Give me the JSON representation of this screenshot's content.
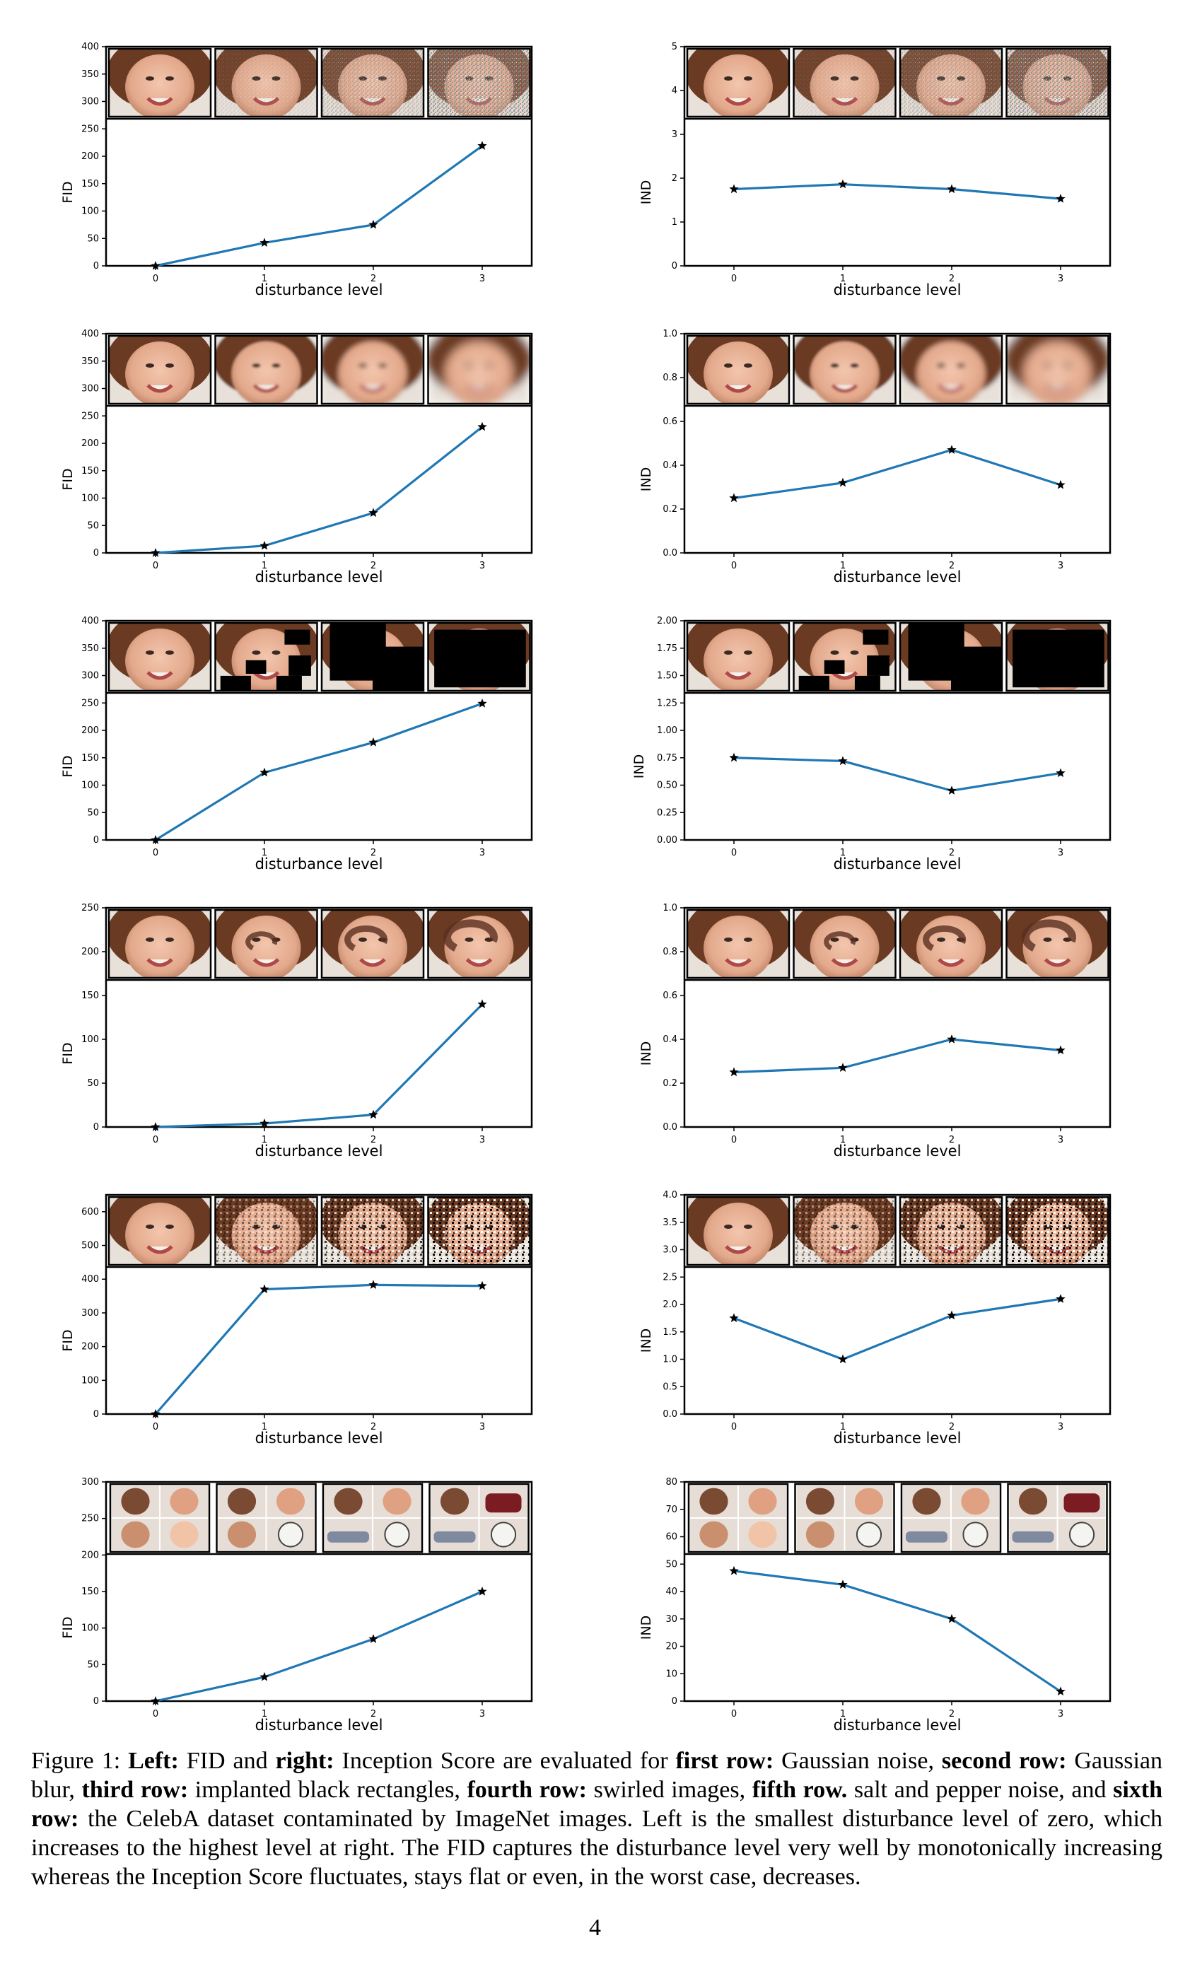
{
  "chart_data": [
    {
      "type": "line",
      "row": 1,
      "side": "left",
      "ylabel": "FID",
      "xlabel": "disturbance level",
      "ylim": [
        0,
        400
      ],
      "yticks": [
        "0",
        "50",
        "100",
        "150",
        "200",
        "250",
        "300",
        "350",
        "400"
      ],
      "x": [
        0,
        1,
        2,
        3
      ],
      "values": [
        0,
        42,
        75,
        219
      ],
      "thumbs": "face",
      "effect": "noise",
      "color": "#1f77b4"
    },
    {
      "type": "line",
      "row": 1,
      "side": "right",
      "ylabel": "IND",
      "xlabel": "disturbance level",
      "ylim": [
        0,
        5
      ],
      "yticks": [
        "0",
        "1",
        "2",
        "3",
        "4",
        "5"
      ],
      "x": [
        0,
        1,
        2,
        3
      ],
      "values": [
        1.75,
        1.86,
        1.75,
        1.53
      ],
      "thumbs": "face",
      "effect": "noise",
      "color": "#1f77b4"
    },
    {
      "type": "line",
      "row": 2,
      "side": "left",
      "ylabel": "FID",
      "xlabel": "disturbance level",
      "ylim": [
        0,
        400
      ],
      "yticks": [
        "0",
        "50",
        "100",
        "150",
        "200",
        "250",
        "300",
        "350",
        "400"
      ],
      "x": [
        0,
        1,
        2,
        3
      ],
      "values": [
        0,
        13,
        73,
        230
      ],
      "thumbs": "face",
      "effect": "blur",
      "color": "#1f77b4"
    },
    {
      "type": "line",
      "row": 2,
      "side": "right",
      "ylabel": "IND",
      "xlabel": "disturbance level",
      "ylim": [
        0,
        1.0
      ],
      "yticks": [
        "0.0",
        "0.2",
        "0.4",
        "0.6",
        "0.8",
        "1.0"
      ],
      "x": [
        0,
        1,
        2,
        3
      ],
      "values": [
        0.25,
        0.32,
        0.47,
        0.31
      ],
      "thumbs": "face",
      "effect": "blur",
      "color": "#1f77b4"
    },
    {
      "type": "line",
      "row": 3,
      "side": "left",
      "ylabel": "FID",
      "xlabel": "disturbance level",
      "ylim": [
        0,
        400
      ],
      "yticks": [
        "0",
        "50",
        "100",
        "150",
        "200",
        "250",
        "300",
        "350",
        "400"
      ],
      "x": [
        0,
        1,
        2,
        3
      ],
      "values": [
        0,
        123,
        178,
        249
      ],
      "thumbs": "face",
      "effect": "rect",
      "color": "#1f77b4"
    },
    {
      "type": "line",
      "row": 3,
      "side": "right",
      "ylabel": "IND",
      "xlabel": "disturbance level",
      "ylim": [
        0,
        2.0
      ],
      "yticks": [
        "0.00",
        "0.25",
        "0.50",
        "0.75",
        "1.00",
        "1.25",
        "1.50",
        "1.75",
        "2.00"
      ],
      "x": [
        0,
        1,
        2,
        3
      ],
      "values": [
        0.75,
        0.72,
        0.45,
        0.61
      ],
      "thumbs": "face",
      "effect": "rect",
      "color": "#1f77b4"
    },
    {
      "type": "line",
      "row": 4,
      "side": "left",
      "ylabel": "FID",
      "xlabel": "disturbance level",
      "ylim": [
        0,
        250
      ],
      "yticks": [
        "0",
        "50",
        "100",
        "150",
        "200",
        "250"
      ],
      "x": [
        0,
        1,
        2,
        3
      ],
      "values": [
        0,
        4,
        14,
        140
      ],
      "thumbs": "face",
      "effect": "swirl",
      "color": "#1f77b4"
    },
    {
      "type": "line",
      "row": 4,
      "side": "right",
      "ylabel": "IND",
      "xlabel": "disturbance level",
      "ylim": [
        0,
        1.0
      ],
      "yticks": [
        "0.0",
        "0.2",
        "0.4",
        "0.6",
        "0.8",
        "1.0"
      ],
      "x": [
        0,
        1,
        2,
        3
      ],
      "values": [
        0.25,
        0.27,
        0.4,
        0.35
      ],
      "thumbs": "face",
      "effect": "swirl",
      "color": "#1f77b4"
    },
    {
      "type": "line",
      "row": 5,
      "side": "left",
      "ylabel": "FID",
      "xlabel": "disturbance level",
      "ylim": [
        0,
        650
      ],
      "yticks": [
        "0",
        "100",
        "200",
        "300",
        "400",
        "500",
        "600"
      ],
      "x": [
        0,
        1,
        2,
        3
      ],
      "values": [
        0,
        370,
        383,
        380
      ],
      "thumbs": "face",
      "effect": "saltpepper",
      "color": "#1f77b4"
    },
    {
      "type": "line",
      "row": 5,
      "side": "right",
      "ylabel": "IND",
      "xlabel": "disturbance level",
      "ylim": [
        0,
        4.0
      ],
      "yticks": [
        "0.0",
        "0.5",
        "1.0",
        "1.5",
        "2.0",
        "2.5",
        "3.0",
        "3.5",
        "4.0"
      ],
      "x": [
        0,
        1,
        2,
        3
      ],
      "values": [
        1.75,
        1.0,
        1.8,
        2.1
      ],
      "thumbs": "face",
      "effect": "saltpepper",
      "color": "#1f77b4"
    },
    {
      "type": "line",
      "row": 6,
      "side": "left",
      "ylabel": "FID",
      "xlabel": "disturbance level",
      "ylim": [
        0,
        300
      ],
      "yticks": [
        "0",
        "50",
        "100",
        "150",
        "200",
        "250",
        "300"
      ],
      "x": [
        0,
        1,
        2,
        3
      ],
      "values": [
        0,
        33,
        85,
        150
      ],
      "thumbs": "grid",
      "effect": "contam",
      "color": "#1f77b4"
    },
    {
      "type": "line",
      "row": 6,
      "side": "right",
      "ylabel": "IND",
      "xlabel": "disturbance level",
      "ylim": [
        0,
        80
      ],
      "yticks": [
        "0",
        "10",
        "20",
        "30",
        "40",
        "50",
        "60",
        "70",
        "80"
      ],
      "x": [
        0,
        1,
        2,
        3
      ],
      "values": [
        47.5,
        42.5,
        30,
        3.5
      ],
      "thumbs": "grid",
      "effect": "contam",
      "color": "#1f77b4"
    }
  ],
  "caption": {
    "prefix": "Figure 1: ",
    "left_label": "Left:",
    "text1": " FID and ",
    "right_label": "right:",
    "text2": " Inception Score are evaluated for ",
    "row1_label": "first row:",
    "text3": " Gaussian noise, ",
    "row2_label": "second row:",
    "text4": " Gaussian blur, ",
    "row3_label": "third row:",
    "text5": " implanted black rectangles, ",
    "row4_label": "fourth row:",
    "text6": " swirled images, ",
    "row5_label": "fifth row.",
    "text7": " salt and pepper noise, and ",
    "row6_label": "sixth row:",
    "text8": " the CelebA dataset contaminated by ImageNet images. Left is the smallest disturbance level of zero, which increases to the highest level at right. The FID captures the disturbance level very well by monotonically increasing whereas the Inception Score fluctuates, stays flat or even, in the worst case, decreases."
  },
  "page_number": "4"
}
